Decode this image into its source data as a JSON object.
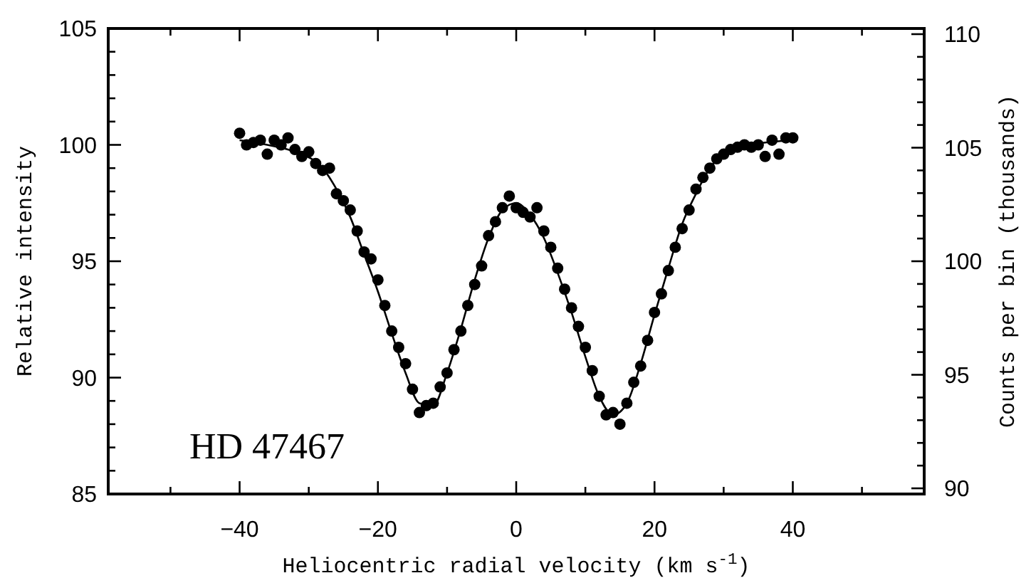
{
  "chart_data": {
    "type": "scatter",
    "xlabel": "Heliocentric radial velocity (km s$^{-1}$)",
    "ylabel": "Relative intensity",
    "y2label": "Counts per bin (thousands)",
    "annotations": [
      "HD 47467"
    ],
    "xlim": [
      -59,
      59
    ],
    "xticks": [
      {
        "value": -50,
        "label": null
      },
      -40,
      {
        "value": -30,
        "label": null
      },
      -20,
      {
        "value": -10,
        "label": null
      },
      0,
      {
        "value": 10,
        "label": null
      },
      20,
      {
        "value": 30,
        "label": null
      },
      40,
      {
        "value": 50,
        "label": null
      }
    ],
    "ylim": [
      85,
      105
    ],
    "yticks": [
      85,
      {
        "value": 86,
        "label": null
      },
      {
        "value": 87,
        "label": null
      },
      {
        "value": 88,
        "label": null
      },
      {
        "value": 89,
        "label": null
      },
      90,
      {
        "value": 91,
        "label": null
      },
      {
        "value": 92,
        "label": null
      },
      {
        "value": 93,
        "label": null
      },
      {
        "value": 94,
        "label": null
      },
      95,
      {
        "value": 96,
        "label": null
      },
      {
        "value": 97,
        "label": null
      },
      {
        "value": 98,
        "label": null
      },
      {
        "value": 99,
        "label": null
      },
      100,
      {
        "value": 101,
        "label": null
      },
      {
        "value": 102,
        "label": null
      },
      {
        "value": 103,
        "label": null
      },
      {
        "value": 104,
        "label": null
      },
      105
    ],
    "y2lim": [
      89.75,
      110.25
    ],
    "y2ticks": [
      90,
      {
        "value": 91,
        "label": null
      },
      {
        "value": 92,
        "label": null
      },
      {
        "value": 93,
        "label": null
      },
      {
        "value": 94,
        "label": null
      },
      95,
      {
        "value": 96,
        "label": null
      },
      {
        "value": 97,
        "label": null
      },
      {
        "value": 98,
        "label": null
      },
      {
        "value": 99,
        "label": null
      },
      100,
      {
        "value": 101,
        "label": null
      },
      {
        "value": 102,
        "label": null
      },
      {
        "value": 103,
        "label": null
      },
      {
        "value": 104,
        "label": null
      },
      105,
      {
        "value": 106,
        "label": null
      },
      {
        "value": 107,
        "label": null
      },
      {
        "value": 108,
        "label": null
      },
      {
        "value": 109,
        "label": null
      },
      110
    ],
    "grid": false,
    "marker": "circle",
    "series": [
      {
        "color": "#000000",
        "x": [
          -40,
          -39,
          -38,
          -37,
          -36,
          -35,
          -34,
          -33,
          -32,
          -31,
          -30,
          -29,
          -28,
          -27,
          -26,
          -25,
          -24,
          -23,
          -22,
          -21,
          -20,
          -19,
          -18,
          -17,
          -16,
          -15,
          -14,
          -13,
          -12,
          -11,
          -10,
          -9,
          -8,
          -7,
          -6,
          -5,
          -4,
          -3,
          -2,
          -1,
          0,
          1,
          2,
          3,
          4,
          5,
          6,
          7,
          8,
          9,
          10,
          11,
          12,
          13,
          14,
          15,
          16,
          17,
          18,
          19,
          20,
          21,
          22,
          23,
          24,
          25,
          26,
          27,
          28,
          29,
          30,
          31,
          32,
          33,
          34,
          35,
          36,
          37,
          38,
          39,
          40
        ],
        "values": [
          100.5,
          100.0,
          100.1,
          100.2,
          99.6,
          100.2,
          100.0,
          100.3,
          99.8,
          99.5,
          99.7,
          99.2,
          98.9,
          99.0,
          97.9,
          97.6,
          97.2,
          96.3,
          95.4,
          95.1,
          94.2,
          93.1,
          92.0,
          91.3,
          90.6,
          89.5,
          88.5,
          88.8,
          88.9,
          89.6,
          90.2,
          91.2,
          92.0,
          93.1,
          94.0,
          94.8,
          96.1,
          96.7,
          97.3,
          97.8,
          97.3,
          97.1,
          96.9,
          97.3,
          96.3,
          95.6,
          94.7,
          93.8,
          93.0,
          92.2,
          91.3,
          90.3,
          89.2,
          88.4,
          88.5,
          88.0,
          88.9,
          89.8,
          90.5,
          91.6,
          92.8,
          93.6,
          94.6,
          95.6,
          96.4,
          97.2,
          98.1,
          98.6,
          99.0,
          99.4,
          99.6,
          99.8,
          99.9,
          100.0,
          99.9,
          100.0,
          99.5,
          100.2,
          99.6,
          100.3,
          100.3
        ]
      },
      {
        "type": "line",
        "color": "#000000",
        "line_style": "solid",
        "marker": "none",
        "x": [
          -40,
          -36,
          -32,
          -28,
          -26,
          -24,
          -22,
          -20,
          -18,
          -16,
          -14,
          -12,
          -10,
          -8,
          -6,
          -4,
          -2,
          0,
          2,
          4,
          6,
          8,
          10,
          12,
          14,
          16,
          18,
          20,
          22,
          24,
          26,
          28,
          30,
          34,
          40
        ],
        "values": [
          100.2,
          100.0,
          99.7,
          99.0,
          98.1,
          96.9,
          95.3,
          93.7,
          91.9,
          90.2,
          88.9,
          88.8,
          90.2,
          92.1,
          94.2,
          96.0,
          97.2,
          97.5,
          97.0,
          96.0,
          94.5,
          92.8,
          90.9,
          89.2,
          88.4,
          88.9,
          90.6,
          92.7,
          94.7,
          96.6,
          97.9,
          99.0,
          99.6,
          100.0,
          100.2
        ]
      }
    ]
  }
}
